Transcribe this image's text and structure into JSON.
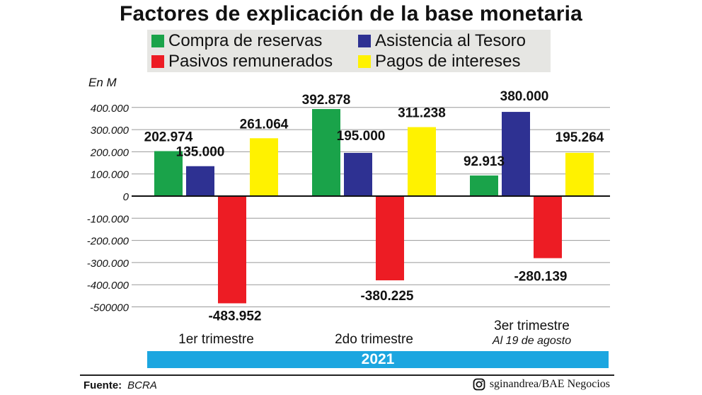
{
  "chart_data": {
    "type": "bar",
    "title": "Factores de explicación de la base monetaria",
    "unit_label": "En M",
    "categories": [
      "1er trimestre",
      "2do trimestre",
      "3er trimestre"
    ],
    "category_subtitles": [
      "",
      "",
      "Al 19 de agosto"
    ],
    "year_band": "2021",
    "ylim": [
      -520000,
      460000
    ],
    "y_ticks": [
      {
        "value": 400000,
        "label": "400.000"
      },
      {
        "value": 300000,
        "label": "300.000"
      },
      {
        "value": 200000,
        "label": "200.000"
      },
      {
        "value": 100000,
        "label": "100.000"
      },
      {
        "value": 0,
        "label": "0"
      },
      {
        "value": -100000,
        "label": "-100.000"
      },
      {
        "value": -200000,
        "label": "-200.000"
      },
      {
        "value": -300000,
        "label": "-300.000"
      },
      {
        "value": -400000,
        "label": "-400.000"
      },
      {
        "value": -500000,
        "label": "-500000"
      }
    ],
    "grid": true,
    "legend_position": "top",
    "series": [
      {
        "name": "Compra de reservas",
        "color": "#1aa34a",
        "values": [
          202974,
          392878,
          92913
        ],
        "labels": [
          "202.974",
          "392.878",
          "92.913"
        ]
      },
      {
        "name": "Asistencia al Tesoro",
        "color": "#2e3192",
        "values": [
          135000,
          195000,
          380000
        ],
        "labels": [
          "135.000",
          "195.000",
          "380.000"
        ]
      },
      {
        "name": "Pasivos remunerados",
        "color": "#ed1c24",
        "values": [
          -483952,
          -380225,
          -280139
        ],
        "labels": [
          "-483.952",
          "-380.225",
          "-280.139"
        ]
      },
      {
        "name": "Pagos de intereses",
        "color": "#fff200",
        "values": [
          261064,
          311238,
          195264
        ],
        "labels": [
          "261.064",
          "311.238",
          "195.264"
        ]
      }
    ]
  },
  "footer": {
    "source_label": "Fuente:",
    "source_value": "BCRA",
    "credit": "sginandrea/BAE Negocios",
    "credit_icon": "instagram-icon"
  }
}
